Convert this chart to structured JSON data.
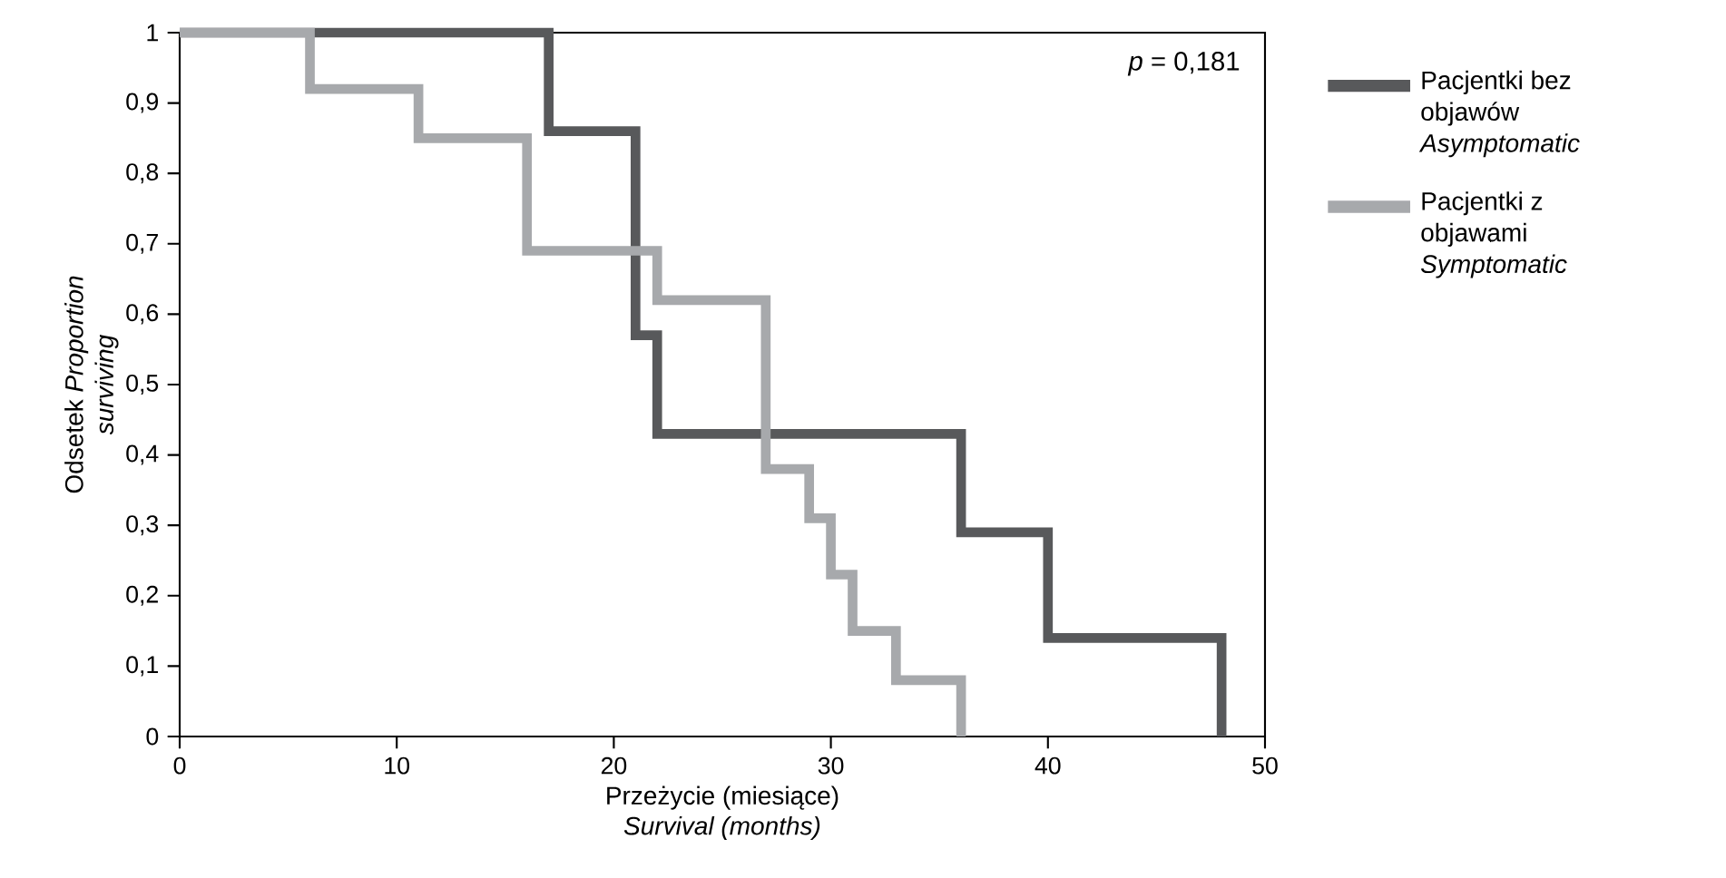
{
  "chart_data": {
    "type": "step",
    "xlabel": "Przeżycie (miesiące) *Survival (months)*",
    "ylabel": "Odsetek *Proportion surviving*",
    "xlim": [
      0,
      50
    ],
    "xticks": [
      0,
      10,
      20,
      30,
      40,
      50
    ],
    "ylim": [
      0,
      1
    ],
    "yticks": [
      0,
      {
        "value": 0.1,
        "label": "0,1"
      },
      {
        "value": 0.2,
        "label": "0,2"
      },
      {
        "value": 0.3,
        "label": "0,3"
      },
      {
        "value": 0.4,
        "label": "0,4"
      },
      {
        "value": 0.5,
        "label": "0,5"
      },
      {
        "value": 0.6,
        "label": "0,6"
      },
      {
        "value": 0.7,
        "label": "0,7"
      },
      {
        "value": 0.8,
        "label": "0,8"
      },
      {
        "value": 0.9,
        "label": "0,9"
      },
      1
    ],
    "series": [
      {
        "name": "Pacjentki bez objawów *Asymptomatic*",
        "color": "#58595b",
        "x": [
          0,
          17,
          21,
          22,
          36,
          40,
          48
        ],
        "values": [
          1,
          0.86,
          0.57,
          0.43,
          0.29,
          0.14,
          0
        ]
      },
      {
        "name": "Pacjentki z objawami *Symptomatic*",
        "color": "#a7a9ac",
        "x": [
          0,
          6,
          11,
          16,
          22,
          27,
          29,
          30,
          31,
          33,
          36
        ],
        "values": [
          1,
          0.92,
          0.85,
          0.69,
          0.62,
          0.38,
          0.31,
          0.23,
          0.15,
          0.08,
          0
        ]
      }
    ],
    "annotations": [
      "*p* = 0,181"
    ],
    "legend": "right",
    "grid": false,
    "marker": "none",
    "line_style": "solid"
  }
}
